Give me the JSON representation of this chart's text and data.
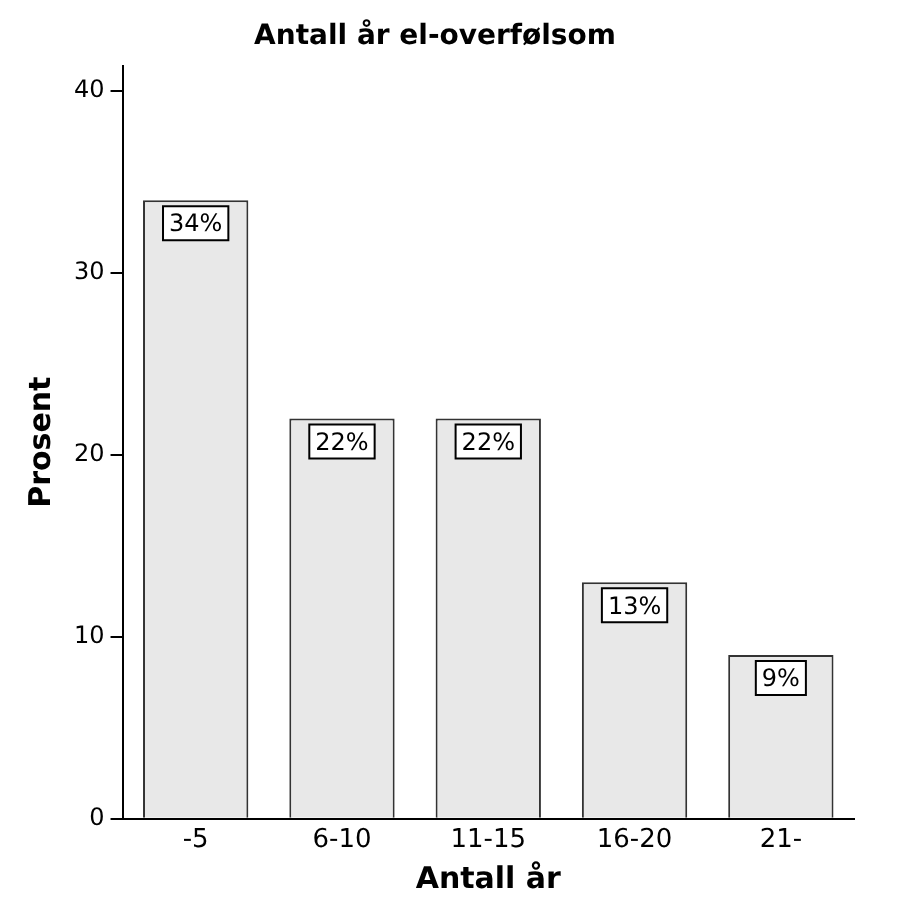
{
  "chart_data": {
    "type": "bar",
    "title": "Antall år el-overfølsom",
    "xlabel": "Antall år",
    "ylabel": "Prosent",
    "categories": [
      "-5",
      "6-10",
      "11-15",
      "16-20",
      "21-"
    ],
    "values": [
      34,
      22,
      22,
      13,
      9
    ],
    "value_labels": [
      "34%",
      "22%",
      "22%",
      "13%",
      "9%"
    ],
    "color": "#e8e8e8",
    "ylim": [
      0,
      41.4
    ],
    "yticks": [
      0,
      10,
      20,
      30,
      40
    ],
    "grid": false,
    "legend": false
  }
}
